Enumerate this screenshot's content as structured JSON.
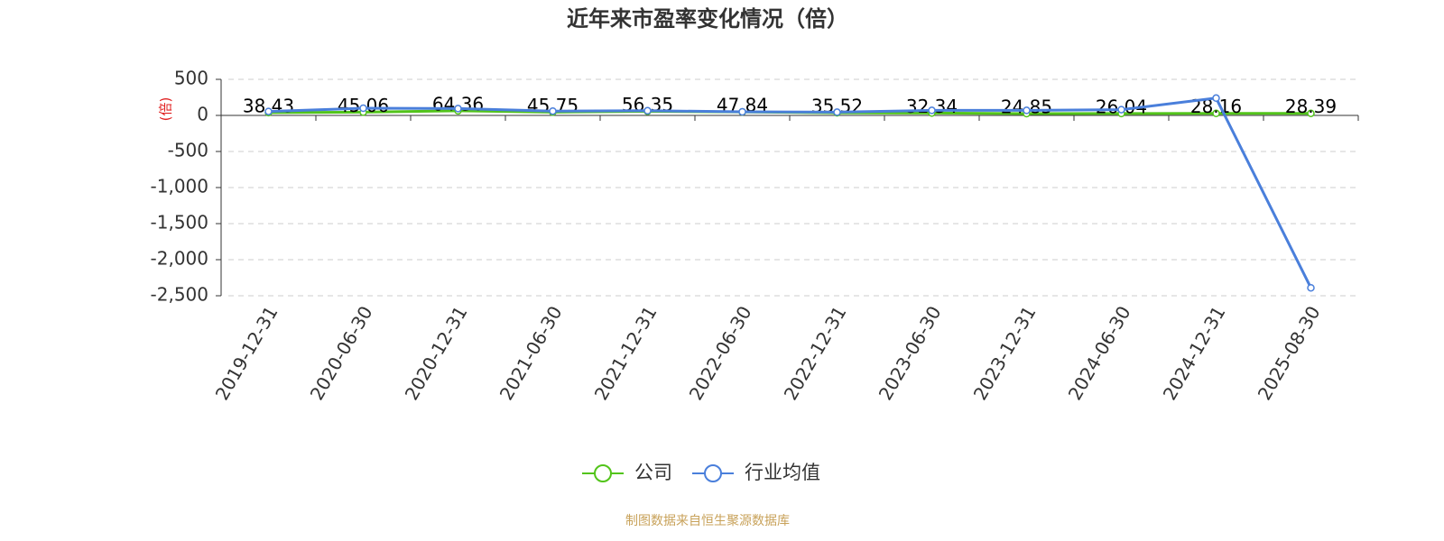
{
  "chart_data": {
    "type": "line",
    "title": "近年来市盈率变化情况（倍）",
    "y_label": "(倍)",
    "categories": [
      "2019-12-31",
      "2020-06-30",
      "2020-12-31",
      "2021-06-30",
      "2021-12-31",
      "2022-06-30",
      "2022-12-31",
      "2023-06-30",
      "2023-12-31",
      "2024-06-30",
      "2024-12-31",
      "2025-08-30"
    ],
    "series": [
      {
        "name": "公司",
        "color": "#52c41a",
        "data_labels": true,
        "values": [
          38.43,
          45.06,
          64.36,
          45.75,
          56.35,
          47.84,
          35.52,
          32.34,
          24.85,
          26.04,
          28.16,
          28.39
        ]
      },
      {
        "name": "行业均值",
        "color": "#4a7fdb",
        "values": [
          55,
          100,
          95,
          60,
          65,
          50,
          45,
          70,
          70,
          80,
          240,
          -2390
        ]
      }
    ],
    "ylim": [
      -2500,
      500
    ],
    "yticks": [
      500,
      0,
      -500,
      {
        "value": -1000,
        "label": "-1,000"
      },
      {
        "value": -1500,
        "label": "-1,500"
      },
      {
        "value": -2000,
        "label": "-2,000"
      },
      {
        "value": -2500,
        "label": "-2,500"
      }
    ],
    "grid": true,
    "source": "制图数据来自恒生聚源数据库"
  }
}
